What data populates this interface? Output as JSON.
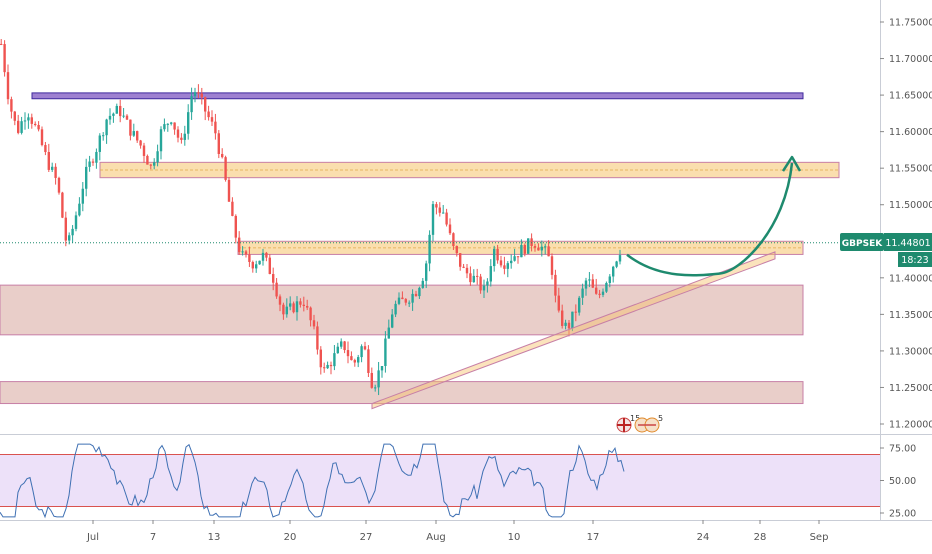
{
  "chart_data": {
    "type": "candlestick",
    "symbol": "GBPSEK",
    "last_price": 11.44801,
    "last_price_label": "11.44801",
    "countdown": "18:23",
    "price_axis": {
      "range": [
        11.18,
        11.78
      ],
      "ticks": [
        11.2,
        11.25,
        11.3,
        11.35,
        11.4,
        11.45,
        11.5,
        11.55,
        11.6,
        11.65,
        11.7,
        11.75
      ],
      "tick_labels": [
        "11.20000",
        "11.25000",
        "11.30000",
        "11.35000",
        "11.40000",
        "11.45000",
        "11.50000",
        "11.55000",
        "11.60000",
        "11.65000",
        "11.70000",
        "11.75000"
      ]
    },
    "time_axis": {
      "labels": [
        "Jul",
        "7",
        "13",
        "20",
        "27",
        "Aug",
        "10",
        "17",
        "24",
        "28",
        "Sep"
      ]
    },
    "zones": [
      {
        "name": "resistance-top",
        "from": 11.645,
        "to": 11.653,
        "color": "#7e57c2"
      },
      {
        "name": "supply-upper",
        "from": 11.537,
        "to": 11.558,
        "color": "#f6c26b"
      },
      {
        "name": "current-level",
        "from": 11.432,
        "to": 11.45,
        "color": "#f6c26b"
      },
      {
        "name": "demand-upper",
        "from": 11.322,
        "to": 11.39,
        "color": "#d7a59d"
      },
      {
        "name": "demand-lower",
        "from": 11.228,
        "to": 11.258,
        "color": "#d7a59d"
      }
    ],
    "trendline": {
      "from_price": 11.232,
      "to_price": 11.43,
      "color": "#f6c26b"
    },
    "projection": {
      "low": 11.41,
      "target": 11.568,
      "color": "#1e8a6e"
    },
    "event_markers": [
      {
        "flag": "uk",
        "count": "15"
      },
      {
        "flag": "uk",
        "count": "5"
      }
    ],
    "rsi": {
      "levels": [
        70,
        30
      ],
      "ticks": [
        25,
        50,
        75
      ],
      "tick_labels": [
        "25.00",
        "50.00",
        "75.00"
      ],
      "line_color": "#3f70b3",
      "band_color": "#e8d9f7"
    },
    "colors": {
      "up": "#26a69a",
      "down": "#ef5350",
      "price_badge": "#1e8a6e"
    }
  }
}
